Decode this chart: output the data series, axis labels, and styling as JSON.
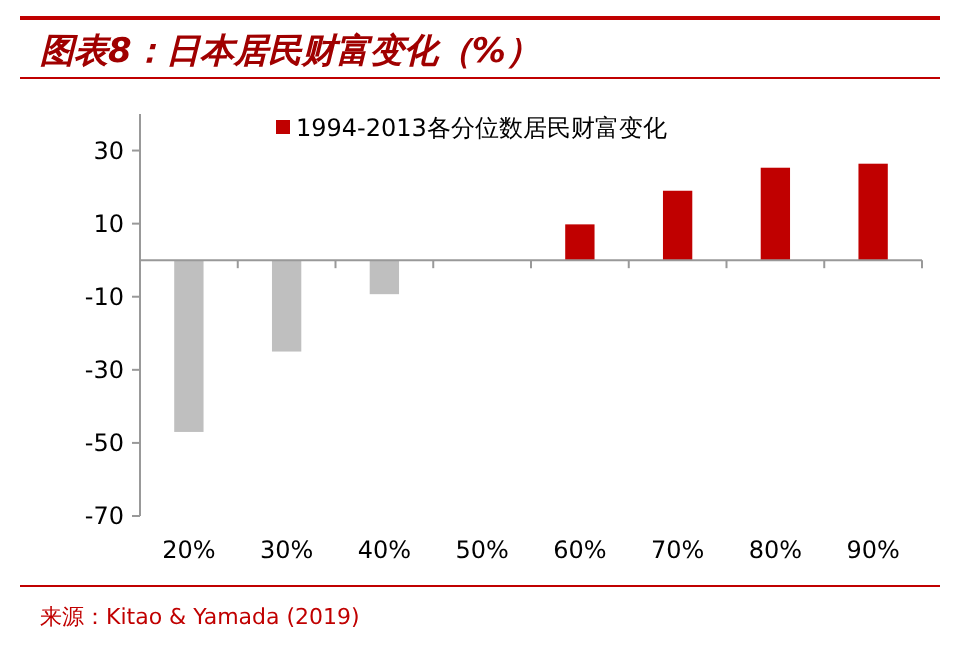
{
  "chart_data": {
    "type": "bar",
    "title": "图表8：日本居民财富变化（%）",
    "categories": [
      "20%",
      "30%",
      "40%",
      "50%",
      "60%",
      "70%",
      "80%",
      "90%"
    ],
    "series": [
      {
        "name": "1994-2013各分位数居民财富变化",
        "color": "#c00000",
        "colors": [
          "#bfbfbf",
          "#bfbfbf",
          "#bfbfbf",
          "#bfbfbf",
          "#c00000",
          "#c00000",
          "#c00000",
          "#c00000"
        ],
        "values": [
          -47,
          -25,
          -9.3,
          0,
          9.8,
          19,
          25.3,
          26.4
        ]
      }
    ],
    "ylim": [
      -70,
      40
    ],
    "yticks": [
      -70,
      -50,
      -30,
      -10,
      10,
      30
    ],
    "legend": "top",
    "grid": false,
    "annotations": [
      "来源：Kitao & Yamada (2019)"
    ]
  }
}
